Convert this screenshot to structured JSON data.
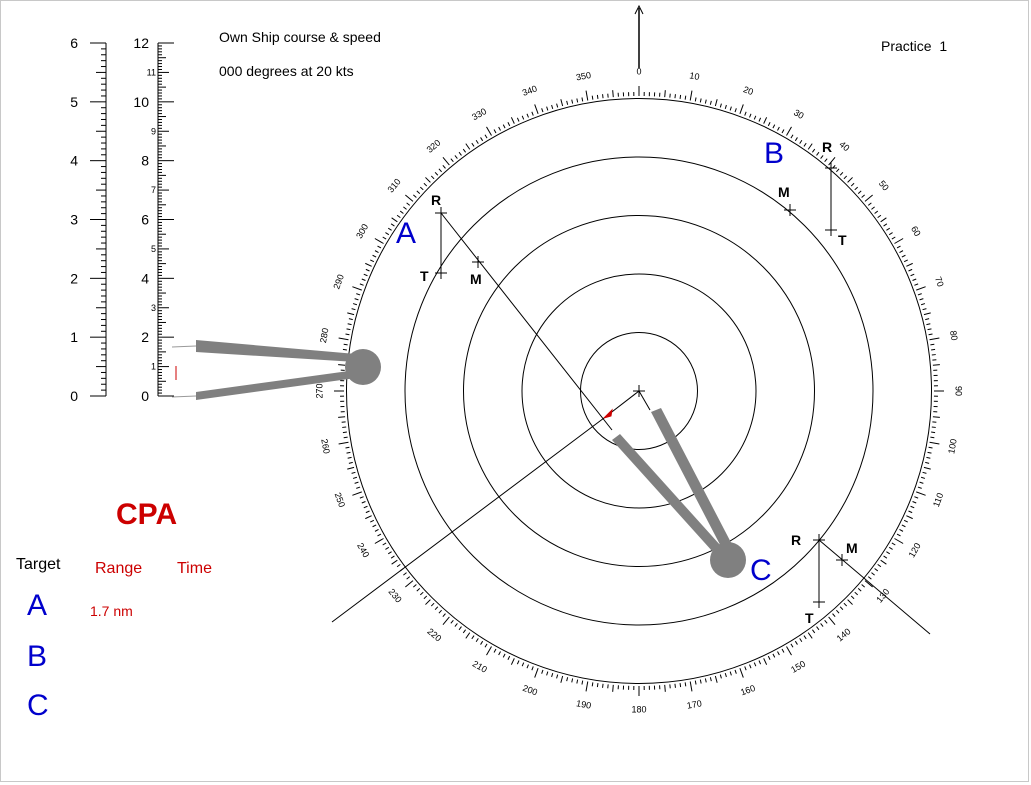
{
  "header": {
    "own_ship_title": "Own Ship course & speed",
    "own_ship_value": "000 degrees at 20 kts",
    "exercise": "Practice  1"
  },
  "cpa": {
    "title": "CPA",
    "columns": [
      "Target",
      "Range",
      "Time"
    ],
    "rows": [
      {
        "target": "A",
        "range": "1.7 nm",
        "time": ""
      },
      {
        "target": "B",
        "range": "",
        "time": ""
      },
      {
        "target": "C",
        "range": "",
        "time": ""
      }
    ]
  },
  "scales": {
    "left": {
      "min": 0,
      "max": 6,
      "labels": [
        "0",
        "1",
        "2",
        "3",
        "4",
        "5",
        "6"
      ]
    },
    "right": {
      "min": 0,
      "max": 12,
      "major_labels": [
        "0",
        "2",
        "4",
        "6",
        "8",
        "10",
        "12"
      ],
      "minor_labels": [
        "1",
        "3",
        "5",
        "7",
        "9",
        "11"
      ]
    }
  },
  "plot": {
    "range_rings": 5,
    "bearing_labels": [
      "0",
      "10",
      "20",
      "30",
      "40",
      "50",
      "60",
      "70",
      "80",
      "90",
      "100",
      "110",
      "120",
      "130",
      "140",
      "150",
      "160",
      "170",
      "180",
      "190",
      "200",
      "210",
      "220",
      "230",
      "240",
      "250",
      "260",
      "270",
      "280",
      "290",
      "300",
      "310",
      "320",
      "330",
      "340",
      "350"
    ],
    "targets": [
      {
        "name": "A",
        "labels": [
          "R",
          "T",
          "M"
        ]
      },
      {
        "name": "B",
        "labels": [
          "R",
          "M",
          "T"
        ]
      },
      {
        "name": "C",
        "labels": [
          "R",
          "M",
          "T"
        ]
      }
    ]
  },
  "colors": {
    "target_label": "#0000cc",
    "cpa_red": "#cc0000",
    "tool_gray": "#808080"
  }
}
